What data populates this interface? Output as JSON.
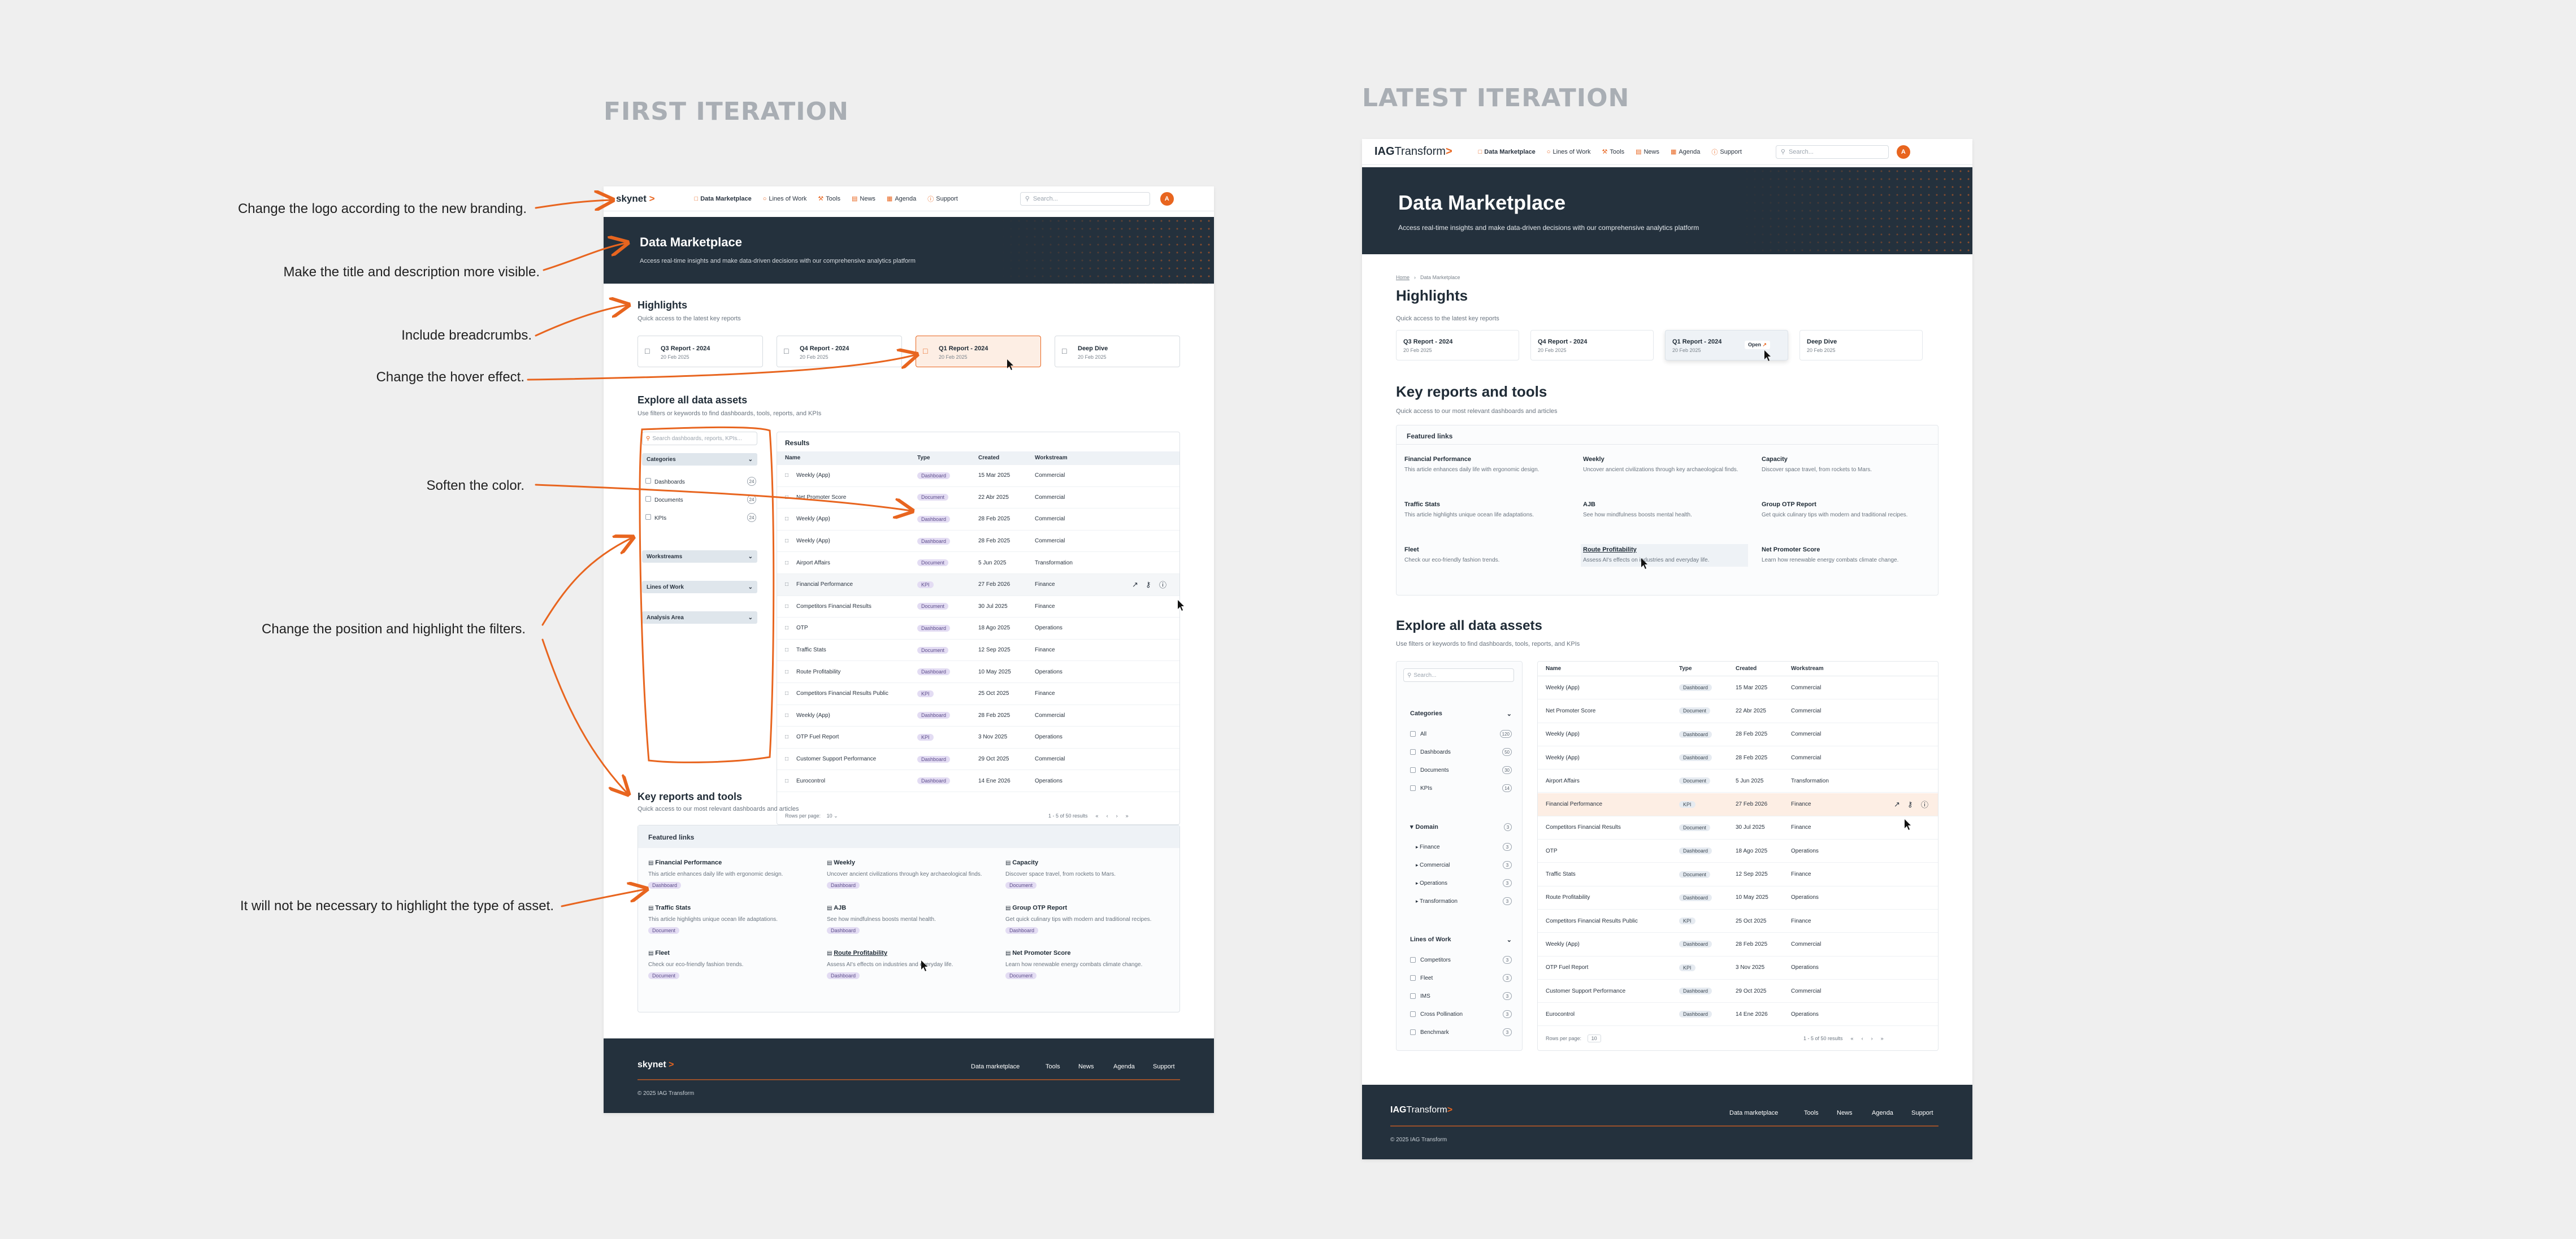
{
  "headings": {
    "first": "FIRST ITERATION",
    "latest": "LATEST ITERATION"
  },
  "notes": [
    "Change the logo according to the new branding.",
    "Make the title and description more visible.",
    "Include breadcrumbs.",
    "Change the hover effect.",
    "Soften the color.",
    "Change the position and highlight the filters.",
    "It will not be necessary to highlight the type of asset."
  ],
  "colors": {
    "accent": "#e8651f",
    "dark": "#24313d",
    "pill": "#e3dcf3",
    "background": "#efefef"
  },
  "nav": {
    "items": [
      "Data Marketplace",
      "Lines of Work",
      "Tools",
      "News",
      "Agenda",
      "Support"
    ],
    "search_placeholder": "Search...",
    "avatar_initial": "A"
  },
  "first": {
    "logo": "skynet",
    "hero_title": "Data Marketplace",
    "hero_desc": "Access real-time insights and make data-driven decisions with our comprehensive analytics platform",
    "highlights_title": "Highlights",
    "highlights_sub": "Quick access to the latest key reports",
    "highlights": [
      {
        "title": "Q3 Report - 2024",
        "date": "20 Feb 2025"
      },
      {
        "title": "Q4 Report - 2024",
        "date": "20 Feb 2025"
      },
      {
        "title": "Q1 Report - 2024",
        "date": "20 Feb 2025"
      },
      {
        "title": "Deep Dive",
        "date": "20 Feb 2025"
      }
    ],
    "explore_title": "Explore all data assets",
    "explore_sub": "Use filters or keywords to find dashboards, tools, reports, and KPIs",
    "search_placeholder": "Search dashboards, reports, KPIs...",
    "categories_label": "Categories",
    "categories": [
      {
        "label": "Dashboards",
        "count": "24"
      },
      {
        "label": "Documents",
        "count": "24"
      },
      {
        "label": "KPIs",
        "count": "24"
      }
    ],
    "filters": [
      "Workstreams",
      "Lines of Work",
      "Analysis Area"
    ],
    "results_label": "Results",
    "columns": [
      "Name",
      "Type",
      "Created",
      "Workstream"
    ],
    "rows": [
      [
        "Weekly (App)",
        "Dashboard",
        "15 Mar 2025",
        "Commercial"
      ],
      [
        "Net Promoter Score",
        "Document",
        "22 Abr 2025",
        "Commercial"
      ],
      [
        "Weekly (App)",
        "Dashboard",
        "28 Feb 2025",
        "Commercial"
      ],
      [
        "Weekly (App)",
        "Dashboard",
        "28 Feb 2025",
        "Commercial"
      ],
      [
        "Airport Affairs",
        "Document",
        "5 Jun 2025",
        "Transformation"
      ],
      [
        "Financial Performance",
        "KPI",
        "27 Feb 2026",
        "Finance"
      ],
      [
        "Competitors Financial Results",
        "Document",
        "30 Jul 2025",
        "Finance"
      ],
      [
        "OTP",
        "Dashboard",
        "18 Ago 2025",
        "Operations"
      ],
      [
        "Traffic Stats",
        "Document",
        "12 Sep 2025",
        "Finance"
      ],
      [
        "Route Profitability",
        "Dashboard",
        "10 May 2025",
        "Operations"
      ],
      [
        "Competitors Financial Results Public",
        "KPI",
        "25 Oct 2025",
        "Finance"
      ],
      [
        "Weekly (App)",
        "Dashboard",
        "28 Feb 2025",
        "Commercial"
      ],
      [
        "OTP Fuel Report",
        "KPI",
        "3 Nov 2025",
        "Operations"
      ],
      [
        "Customer Support Performance",
        "Dashboard",
        "29 Oct 2025",
        "Commercial"
      ],
      [
        "Eurocontrol",
        "Dashboard",
        "14 Ene 2026",
        "Operations"
      ]
    ],
    "rows_per_page": "Rows per page:",
    "rows_per_page_value": "10",
    "pagination": "1 - 5 of 50 results",
    "key_title": "Key reports and tools",
    "key_sub": "Quick access to our most relevant dashboards and articles",
    "featured_label": "Featured links",
    "featured": [
      {
        "title": "Financial Performance",
        "desc": "This article enhances daily life with ergonomic design.",
        "type": "Dashboard"
      },
      {
        "title": "Weekly",
        "desc": "Uncover ancient civilizations through key archaeological finds.",
        "type": "Dashboard"
      },
      {
        "title": "Capacity",
        "desc": "Discover space travel, from rockets to Mars.",
        "type": "Document"
      },
      {
        "title": "Traffic Stats",
        "desc": "This article highlights unique ocean life adaptations.",
        "type": "Document"
      },
      {
        "title": "AJB",
        "desc": "See how mindfulness boosts mental health.",
        "type": "Dashboard"
      },
      {
        "title": "Group OTP Report",
        "desc": "Get quick culinary tips with modern and traditional recipes.",
        "type": "Dashboard"
      },
      {
        "title": "Fleet",
        "desc": "Check our eco-friendly fashion trends.",
        "type": "Document"
      },
      {
        "title": "Route Profitability",
        "desc": "Assess AI's effects on industries and everyday life.",
        "type": "Dashboard"
      },
      {
        "title": "Net Promoter Score",
        "desc": "Learn how renewable energy combats climate change.",
        "type": "Document"
      }
    ],
    "footer_links": [
      "Data marketplace",
      "Tools",
      "News",
      "Agenda",
      "Support"
    ],
    "copyright": "© 2025 IAG Transform"
  },
  "latest": {
    "logo_a": "IAG",
    "logo_b": "Transform",
    "hero_title": "Data Marketplace",
    "hero_desc": "Access real-time insights and make data-driven decisions with our comprehensive analytics platform",
    "breadcrumb": [
      "Home",
      "Data Marketplace"
    ],
    "highlights_title": "Highlights",
    "highlights_sub": "Quick access to the latest key reports",
    "highlights": [
      {
        "title": "Q3 Report - 2024",
        "date": "20 Feb 2025"
      },
      {
        "title": "Q4 Report - 2024",
        "date": "20 Feb 2025"
      },
      {
        "title": "Q1 Report - 2024",
        "date": "20 Feb 2025"
      },
      {
        "title": "Deep Dive",
        "date": "20 Feb 2025"
      }
    ],
    "open_label": "Open",
    "key_title": "Key reports and tools",
    "key_sub": "Quick access to our most relevant dashboards and articles",
    "featured_label": "Featured links",
    "featured": [
      {
        "title": "Financial Performance",
        "desc": "This article enhances daily life with ergonomic design."
      },
      {
        "title": "Weekly",
        "desc": "Uncover ancient civilizations through key archaeological finds."
      },
      {
        "title": "Capacity",
        "desc": "Discover space travel, from rockets to Mars."
      },
      {
        "title": "Traffic Stats",
        "desc": "This article highlights unique ocean life adaptations."
      },
      {
        "title": "AJB",
        "desc": "See how mindfulness boosts mental health."
      },
      {
        "title": "Group OTP Report",
        "desc": "Get quick culinary tips with modern and traditional recipes."
      },
      {
        "title": "Fleet",
        "desc": "Check our eco-friendly fashion trends."
      },
      {
        "title": "Route Profitability",
        "desc": "Assess AI's effects on industries and everyday life."
      },
      {
        "title": "Net Promoter Score",
        "desc": "Learn how renewable energy combats climate change."
      }
    ],
    "explore_title": "Explore all data assets",
    "explore_sub": "Use filters or keywords to find dashboards, tools, reports, and KPIs",
    "search_placeholder": "Search...",
    "categories_label": "Categories",
    "categories": [
      {
        "label": "All",
        "count": "120"
      },
      {
        "label": "Dashboards",
        "count": "50"
      },
      {
        "label": "Documents",
        "count": "30"
      },
      {
        "label": "KPIs",
        "count": "14"
      }
    ],
    "domain_label": "Domain",
    "domain_items": [
      {
        "label": "Finance",
        "count": "3"
      },
      {
        "label": "Commercial",
        "count": "3"
      },
      {
        "label": "Operations",
        "count": "3"
      },
      {
        "label": "Transformation",
        "count": "3"
      }
    ],
    "lines_label": "Lines of Work",
    "lines_items": [
      {
        "label": "Competitors",
        "count": "3"
      },
      {
        "label": "Fleet",
        "count": "3"
      },
      {
        "label": "IMS",
        "count": "3"
      },
      {
        "label": "Cross Pollination",
        "count": "3"
      },
      {
        "label": "Benchmark",
        "count": "3"
      }
    ],
    "columns": [
      "Name",
      "Type",
      "Created",
      "Workstream"
    ],
    "rows": [
      [
        "Weekly (App)",
        "Dashboard",
        "15 Mar 2025",
        "Commercial"
      ],
      [
        "Net Promoter Score",
        "Document",
        "22 Abr 2025",
        "Commercial"
      ],
      [
        "Weekly (App)",
        "Dashboard",
        "28 Feb 2025",
        "Commercial"
      ],
      [
        "Weekly (App)",
        "Dashboard",
        "28 Feb 2025",
        "Commercial"
      ],
      [
        "Airport Affairs",
        "Document",
        "5 Jun 2025",
        "Transformation"
      ],
      [
        "Financial Performance",
        "KPI",
        "27 Feb 2026",
        "Finance"
      ],
      [
        "Competitors Financial Results",
        "Document",
        "30 Jul 2025",
        "Finance"
      ],
      [
        "OTP",
        "Dashboard",
        "18 Ago 2025",
        "Operations"
      ],
      [
        "Traffic Stats",
        "Document",
        "12 Sep 2025",
        "Finance"
      ],
      [
        "Route Profitability",
        "Dashboard",
        "10 May 2025",
        "Operations"
      ],
      [
        "Competitors Financial Results Public",
        "KPI",
        "25 Oct 2025",
        "Finance"
      ],
      [
        "Weekly (App)",
        "Dashboard",
        "28 Feb 2025",
        "Commercial"
      ],
      [
        "OTP Fuel Report",
        "KPI",
        "3 Nov 2025",
        "Operations"
      ],
      [
        "Customer Support Performance",
        "Dashboard",
        "29 Oct 2025",
        "Commercial"
      ],
      [
        "Eurocontrol",
        "Dashboard",
        "14 Ene 2026",
        "Operations"
      ]
    ],
    "rows_per_page": "Rows per page:",
    "rows_per_page_value": "10",
    "pagination": "1 - 5 of 50 results",
    "footer_links": [
      "Data marketplace",
      "Tools",
      "News",
      "Agenda",
      "Support"
    ],
    "copyright": "© 2025 IAG Transform"
  }
}
